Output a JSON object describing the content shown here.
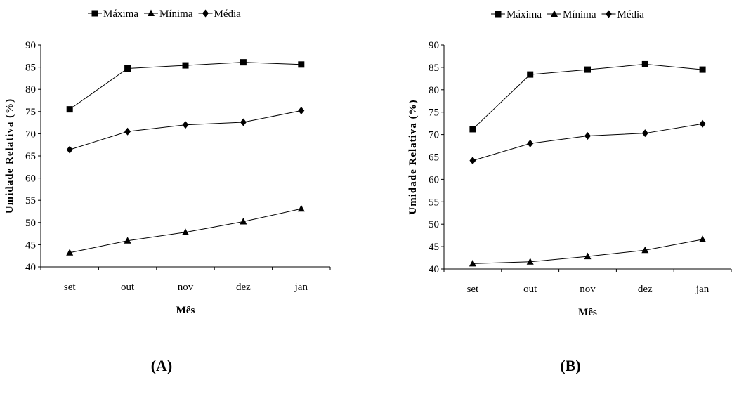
{
  "chart_data": [
    {
      "type": "line",
      "panel_label": "(A)",
      "categories": [
        "set",
        "out",
        "nov",
        "dez",
        "jan"
      ],
      "series": [
        {
          "name": "Máxima",
          "marker": "square",
          "values": [
            75.5,
            84.7,
            85.4,
            86.1,
            85.6
          ]
        },
        {
          "name": "Mínima",
          "marker": "triangle",
          "values": [
            43.2,
            45.9,
            47.8,
            50.2,
            53.1
          ]
        },
        {
          "name": "Média",
          "marker": "diamond",
          "values": [
            66.4,
            70.5,
            72.0,
            72.6,
            75.2
          ]
        }
      ],
      "xlabel": "Mês",
      "ylabel": "Umidade Relativa (%)",
      "ylim": [
        40,
        90
      ],
      "yticks": [
        40,
        45,
        50,
        55,
        60,
        65,
        70,
        75,
        80,
        85,
        90
      ],
      "grid": false,
      "legend": "top"
    },
    {
      "type": "line",
      "panel_label": "(B)",
      "categories": [
        "set",
        "out",
        "nov",
        "dez",
        "jan"
      ],
      "series": [
        {
          "name": "Máxima",
          "marker": "square",
          "values": [
            71.2,
            83.4,
            84.5,
            85.7,
            84.5
          ]
        },
        {
          "name": "Mínima",
          "marker": "triangle",
          "values": [
            41.2,
            41.6,
            42.8,
            44.2,
            46.6
          ]
        },
        {
          "name": "Média",
          "marker": "diamond",
          "values": [
            64.2,
            68.0,
            69.7,
            70.3,
            72.4
          ]
        }
      ],
      "xlabel": "Mês",
      "ylabel": "Umidade Relativa (%)",
      "ylim": [
        40,
        90
      ],
      "yticks": [
        40,
        45,
        50,
        55,
        60,
        65,
        70,
        75,
        80,
        85,
        90
      ],
      "grid": false,
      "legend": "top"
    }
  ]
}
